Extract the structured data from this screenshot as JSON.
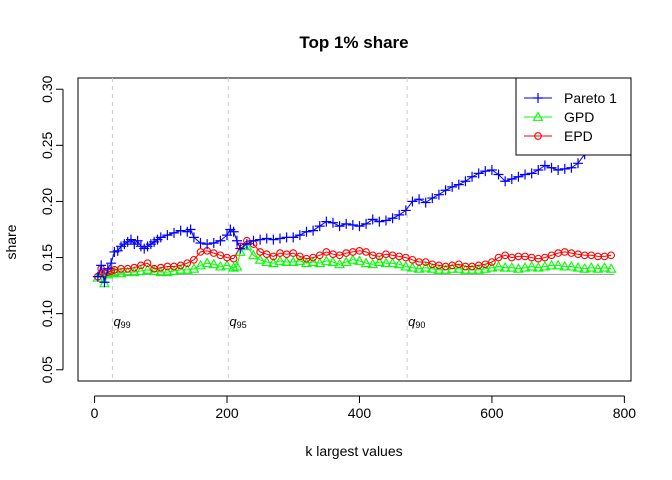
{
  "chart_data": {
    "type": "line",
    "title": "Top 1% share",
    "xlabel": "k largest values",
    "ylabel": "share",
    "xlim": [
      -25,
      810
    ],
    "ylim": [
      0.04,
      0.31
    ],
    "x_ticks": [
      0,
      200,
      400,
      600,
      800
    ],
    "y_ticks": [
      0.05,
      0.1,
      0.15,
      0.2,
      0.25,
      0.3
    ],
    "x_tick_labels": [
      "0",
      "200",
      "400",
      "600",
      "800"
    ],
    "y_tick_labels": [
      "0.05",
      "0.10",
      "0.15",
      "0.20",
      "0.25",
      "0.30"
    ],
    "grid": false,
    "legend_position": "top-right",
    "reference_line": {
      "y": 0.135,
      "color": "#999999"
    },
    "quantile_lines": [
      {
        "x": 27,
        "label_base": "q",
        "label_sub": "99"
      },
      {
        "x": 202,
        "label_base": "q",
        "label_sub": "95"
      },
      {
        "x": 472,
        "label_base": "q",
        "label_sub": "90"
      }
    ],
    "series": [
      {
        "name": "Pareto 1",
        "color": "#0000ff",
        "marker": "plus",
        "x": [
          5,
          10,
          15,
          20,
          25,
          30,
          35,
          40,
          45,
          50,
          55,
          60,
          65,
          70,
          75,
          80,
          85,
          90,
          95,
          100,
          110,
          120,
          130,
          140,
          145,
          150,
          160,
          170,
          180,
          190,
          200,
          205,
          210,
          215,
          220,
          230,
          240,
          250,
          260,
          270,
          280,
          290,
          300,
          310,
          320,
          330,
          340,
          350,
          360,
          370,
          380,
          390,
          400,
          410,
          420,
          430,
          440,
          450,
          460,
          470,
          480,
          490,
          500,
          510,
          520,
          530,
          540,
          550,
          560,
          570,
          580,
          590,
          600,
          610,
          620,
          630,
          640,
          650,
          660,
          670,
          680,
          690,
          700,
          710,
          720,
          730,
          740,
          750,
          760,
          770,
          780
        ],
        "y": [
          0.133,
          0.143,
          0.128,
          0.14,
          0.145,
          0.155,
          0.156,
          0.16,
          0.162,
          0.164,
          0.166,
          0.162,
          0.165,
          0.16,
          0.158,
          0.16,
          0.162,
          0.164,
          0.166,
          0.168,
          0.17,
          0.172,
          0.174,
          0.173,
          0.175,
          0.168,
          0.163,
          0.162,
          0.163,
          0.165,
          0.17,
          0.175,
          0.173,
          0.165,
          0.158,
          0.162,
          0.165,
          0.166,
          0.167,
          0.166,
          0.167,
          0.168,
          0.168,
          0.17,
          0.173,
          0.174,
          0.178,
          0.182,
          0.181,
          0.178,
          0.18,
          0.179,
          0.178,
          0.18,
          0.184,
          0.182,
          0.183,
          0.185,
          0.188,
          0.192,
          0.2,
          0.202,
          0.199,
          0.203,
          0.206,
          0.21,
          0.213,
          0.215,
          0.218,
          0.222,
          0.225,
          0.227,
          0.228,
          0.224,
          0.218,
          0.22,
          0.222,
          0.224,
          0.225,
          0.228,
          0.232,
          0.23,
          0.228,
          0.229,
          0.23,
          0.234,
          0.242,
          0.248,
          0.252,
          0.255,
          0.258
        ]
      },
      {
        "name": "GPD",
        "color": "#00ff00",
        "marker": "triangle",
        "x": [
          5,
          10,
          15,
          20,
          25,
          30,
          40,
          50,
          60,
          70,
          80,
          90,
          100,
          110,
          120,
          130,
          140,
          150,
          160,
          170,
          180,
          190,
          200,
          210,
          215,
          220,
          230,
          240,
          250,
          260,
          270,
          280,
          290,
          300,
          310,
          320,
          330,
          340,
          350,
          360,
          370,
          380,
          390,
          400,
          410,
          420,
          430,
          440,
          450,
          460,
          470,
          480,
          490,
          500,
          510,
          520,
          530,
          540,
          550,
          560,
          570,
          580,
          590,
          600,
          610,
          620,
          630,
          640,
          650,
          660,
          670,
          680,
          690,
          700,
          710,
          720,
          730,
          740,
          750,
          760,
          770,
          780
        ],
        "y": [
          0.132,
          0.136,
          0.127,
          0.135,
          0.136,
          0.137,
          0.136,
          0.137,
          0.137,
          0.138,
          0.139,
          0.138,
          0.137,
          0.137,
          0.138,
          0.139,
          0.139,
          0.14,
          0.143,
          0.145,
          0.144,
          0.142,
          0.143,
          0.141,
          0.142,
          0.155,
          0.16,
          0.152,
          0.148,
          0.146,
          0.145,
          0.147,
          0.146,
          0.146,
          0.147,
          0.145,
          0.146,
          0.145,
          0.147,
          0.146,
          0.144,
          0.146,
          0.148,
          0.147,
          0.145,
          0.144,
          0.146,
          0.145,
          0.145,
          0.144,
          0.142,
          0.141,
          0.14,
          0.141,
          0.14,
          0.139,
          0.139,
          0.14,
          0.14,
          0.139,
          0.139,
          0.139,
          0.14,
          0.141,
          0.142,
          0.141,
          0.141,
          0.14,
          0.141,
          0.142,
          0.141,
          0.142,
          0.143,
          0.143,
          0.142,
          0.142,
          0.141,
          0.14,
          0.141,
          0.14,
          0.141,
          0.14
        ]
      },
      {
        "name": "EPD",
        "color": "#ff0000",
        "marker": "circle",
        "x": [
          5,
          10,
          15,
          20,
          25,
          30,
          40,
          50,
          60,
          70,
          80,
          90,
          100,
          110,
          120,
          130,
          140,
          150,
          160,
          170,
          180,
          190,
          200,
          210,
          220,
          230,
          240,
          250,
          260,
          270,
          280,
          290,
          300,
          310,
          320,
          330,
          340,
          350,
          360,
          370,
          380,
          390,
          400,
          410,
          420,
          430,
          440,
          450,
          460,
          470,
          480,
          490,
          500,
          510,
          520,
          530,
          540,
          550,
          560,
          570,
          580,
          590,
          600,
          610,
          620,
          630,
          640,
          650,
          660,
          670,
          680,
          690,
          700,
          710,
          720,
          730,
          740,
          750,
          760,
          770,
          780
        ],
        "y": [
          0.133,
          0.14,
          0.136,
          0.137,
          0.138,
          0.139,
          0.14,
          0.14,
          0.141,
          0.143,
          0.145,
          0.14,
          0.141,
          0.142,
          0.142,
          0.143,
          0.145,
          0.148,
          0.155,
          0.156,
          0.154,
          0.152,
          0.15,
          0.149,
          0.16,
          0.165,
          0.162,
          0.155,
          0.153,
          0.151,
          0.154,
          0.153,
          0.154,
          0.151,
          0.149,
          0.15,
          0.152,
          0.155,
          0.153,
          0.152,
          0.154,
          0.155,
          0.156,
          0.155,
          0.152,
          0.151,
          0.153,
          0.152,
          0.151,
          0.15,
          0.148,
          0.146,
          0.146,
          0.144,
          0.143,
          0.142,
          0.143,
          0.144,
          0.142,
          0.142,
          0.143,
          0.144,
          0.146,
          0.15,
          0.152,
          0.15,
          0.151,
          0.151,
          0.15,
          0.149,
          0.15,
          0.152,
          0.154,
          0.155,
          0.154,
          0.153,
          0.152,
          0.152,
          0.151,
          0.151,
          0.152
        ]
      }
    ]
  }
}
